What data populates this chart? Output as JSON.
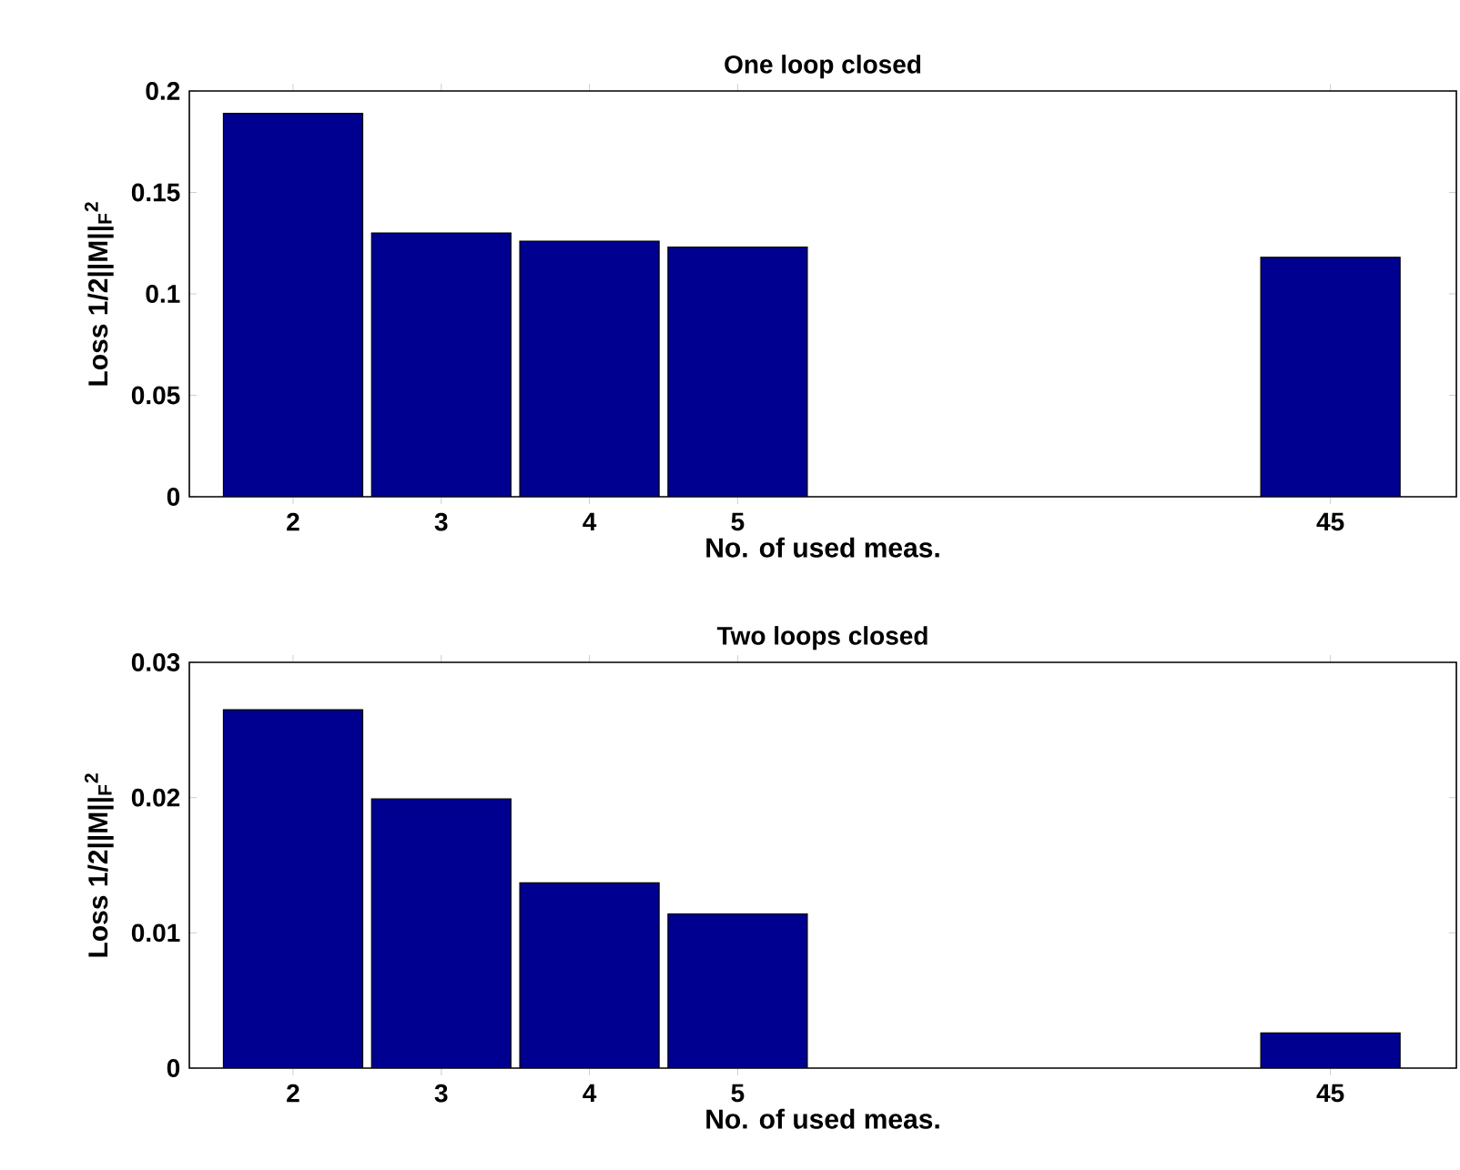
{
  "chart_data": [
    {
      "type": "bar",
      "title": "One loop closed",
      "xlabel": "No. of used meas.",
      "ylabel": "Loss 1/2||M||$_{F}$$^{2}$",
      "categories": [
        "2",
        "3",
        "4",
        "5",
        null,
        null,
        null,
        "45"
      ],
      "values": [
        0.189,
        0.13,
        0.126,
        0.123,
        null,
        null,
        null,
        0.118
      ],
      "color": "#000090",
      "ylim": [
        0,
        0.2
      ],
      "yticks": [
        0,
        0.05,
        0.1,
        0.15,
        0.2
      ]
    },
    {
      "type": "bar",
      "title": "Two loops closed",
      "xlabel": "No. of used meas.",
      "ylabel": "Loss 1/2||M||$_{F}$$^{2}$",
      "categories": [
        "2",
        "3",
        "4",
        "5",
        null,
        null,
        null,
        "45"
      ],
      "values": [
        0.0265,
        0.0199,
        0.0137,
        0.0114,
        null,
        null,
        null,
        0.0026
      ],
      "color": "#000090",
      "ylim": [
        0,
        0.03
      ],
      "yticks": [
        0,
        0.01,
        0.02,
        0.03
      ]
    }
  ]
}
